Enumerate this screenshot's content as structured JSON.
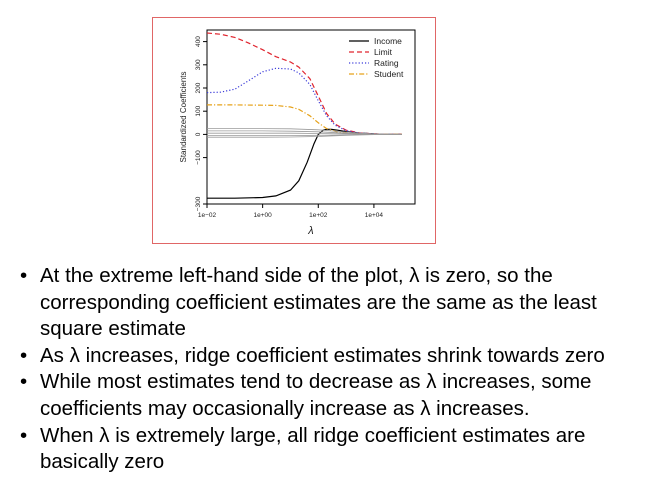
{
  "chart_data": {
    "type": "line",
    "title": "",
    "xlabel": "λ",
    "ylabel": "Standardized Coefficients",
    "x_scale": "log10",
    "xlim": [
      0.01,
      300000
    ],
    "ylim": [
      -300,
      450
    ],
    "x_ticks": [
      {
        "value": 0.01,
        "label": "1e−02"
      },
      {
        "value": 1,
        "label": "1e+00"
      },
      {
        "value": 100,
        "label": "1e+02"
      },
      {
        "value": 10000,
        "label": "1e+04"
      }
    ],
    "y_ticks": [
      {
        "value": -300,
        "label": "−300"
      },
      {
        "value": -100,
        "label": "−100"
      },
      {
        "value": 0,
        "label": "0"
      },
      {
        "value": 100,
        "label": "100"
      },
      {
        "value": 200,
        "label": "200"
      },
      {
        "value": 300,
        "label": "300"
      },
      {
        "value": 400,
        "label": "400"
      }
    ],
    "legend_position": "top-right",
    "series": [
      {
        "name": "Income",
        "color": "#000000",
        "dash": "solid",
        "x": [
          0.01,
          0.1,
          1,
          3,
          10,
          20,
          40,
          70,
          100,
          150,
          200,
          300,
          500,
          1000,
          3000,
          10000,
          30000,
          100000
        ],
        "y": [
          -275,
          -275,
          -272,
          -265,
          -240,
          -200,
          -120,
          -40,
          0,
          18,
          22,
          22,
          18,
          12,
          6,
          2,
          0,
          0
        ]
      },
      {
        "name": "Limit",
        "color": "#e0242e",
        "dash": "dashed",
        "x": [
          0.01,
          0.03,
          0.1,
          0.3,
          1,
          3,
          10,
          20,
          50,
          100,
          200,
          400,
          1000,
          3000,
          10000,
          30000,
          100000
        ],
        "y": [
          437,
          432,
          418,
          395,
          365,
          335,
          312,
          290,
          240,
          165,
          90,
          45,
          18,
          7,
          2,
          0,
          0
        ]
      },
      {
        "name": "Rating",
        "color": "#3b3bd9",
        "dash": "dotted",
        "x": [
          0.01,
          0.03,
          0.1,
          0.3,
          1,
          3,
          10,
          20,
          50,
          100,
          200,
          400,
          1000,
          3000,
          10000,
          30000,
          100000
        ],
        "y": [
          180,
          182,
          195,
          230,
          270,
          285,
          282,
          265,
          215,
          145,
          80,
          40,
          16,
          6,
          2,
          0,
          0
        ]
      },
      {
        "name": "Student",
        "color": "#e6a21a",
        "dash": "dashdot",
        "x": [
          0.01,
          0.1,
          1,
          3,
          10,
          20,
          50,
          100,
          200,
          500,
          1000,
          3000,
          10000,
          30000,
          100000
        ],
        "y": [
          127,
          127,
          126,
          125,
          118,
          108,
          80,
          50,
          25,
          10,
          5,
          2,
          0,
          0,
          0
        ]
      },
      {
        "name": "",
        "color": "#9a9a9a",
        "dash": "solid",
        "x": [
          0.01,
          1,
          10,
          100,
          1000,
          10000,
          100000
        ],
        "y": [
          25,
          25,
          24,
          20,
          10,
          2,
          0
        ]
      },
      {
        "name": "",
        "color": "#9a9a9a",
        "dash": "solid",
        "x": [
          0.01,
          1,
          10,
          100,
          1000,
          10000,
          100000
        ],
        "y": [
          15,
          15,
          14,
          11,
          5,
          1,
          0
        ]
      },
      {
        "name": "",
        "color": "#9a9a9a",
        "dash": "solid",
        "x": [
          0.01,
          1,
          10,
          100,
          1000,
          10000,
          100000
        ],
        "y": [
          5,
          5,
          5,
          4,
          2,
          0,
          0
        ]
      },
      {
        "name": "",
        "color": "#9a9a9a",
        "dash": "solid",
        "x": [
          0.01,
          1,
          10,
          100,
          1000,
          10000,
          100000
        ],
        "y": [
          -5,
          -5,
          -5,
          -4,
          -2,
          0,
          0
        ]
      },
      {
        "name": "",
        "color": "#9a9a9a",
        "dash": "solid",
        "x": [
          0.01,
          1,
          10,
          100,
          1000,
          10000,
          100000
        ],
        "y": [
          -12,
          -12,
          -11,
          -9,
          -4,
          -1,
          0
        ]
      }
    ]
  },
  "bullets": [
    "At the extreme left-hand side of the plot, λ is zero, so the corresponding coefficient estimates are the same as the least square estimate",
    "As λ increases, ridge coefficient estimates shrink towards zero",
    "While most estimates tend to decrease as λ increases, some coefficients may occasionally increase as λ increases.",
    "When λ is extremely large, all ridge coefficient estimates are basically zero"
  ],
  "bullet_symbol": "•"
}
